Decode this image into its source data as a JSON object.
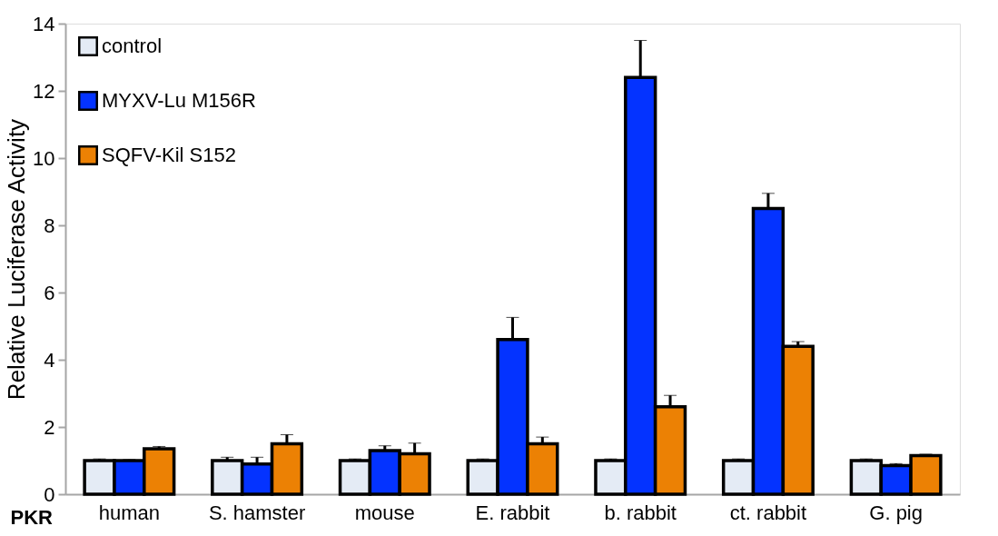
{
  "chart_data": {
    "type": "bar",
    "ylabel": "Relative Luciferase Activity",
    "xlabel": "PKR",
    "categories": [
      "human",
      "S. hamster",
      "mouse",
      "E. rabbit",
      "b. rabbit",
      "ct. rabbit",
      "G. pig"
    ],
    "series": [
      {
        "name": "control",
        "color": "#e4ebf5",
        "values": [
          1.0,
          1.0,
          1.0,
          1.0,
          1.0,
          1.0,
          1.0
        ],
        "errors": [
          0.05,
          0.1,
          0.05,
          0.05,
          0.05,
          0.05,
          0.05
        ]
      },
      {
        "name": "MYXV-Lu M156R",
        "color": "#0433ff",
        "values": [
          1.0,
          0.9,
          1.3,
          4.6,
          12.4,
          8.5,
          0.85
        ],
        "errors": [
          0.03,
          0.2,
          0.14,
          0.66,
          1.1,
          0.45,
          0.06
        ]
      },
      {
        "name": "SQFV-Kil S152",
        "color": "#ec8104",
        "values": [
          1.35,
          1.5,
          1.2,
          1.5,
          2.6,
          4.4,
          1.15
        ],
        "errors": [
          0.07,
          0.27,
          0.32,
          0.2,
          0.34,
          0.14,
          0.04
        ]
      }
    ],
    "ylim": [
      0,
      14
    ],
    "yticks": [
      0,
      2,
      4,
      6,
      8,
      10,
      12,
      14
    ],
    "grid": false,
    "legend": "top left"
  }
}
